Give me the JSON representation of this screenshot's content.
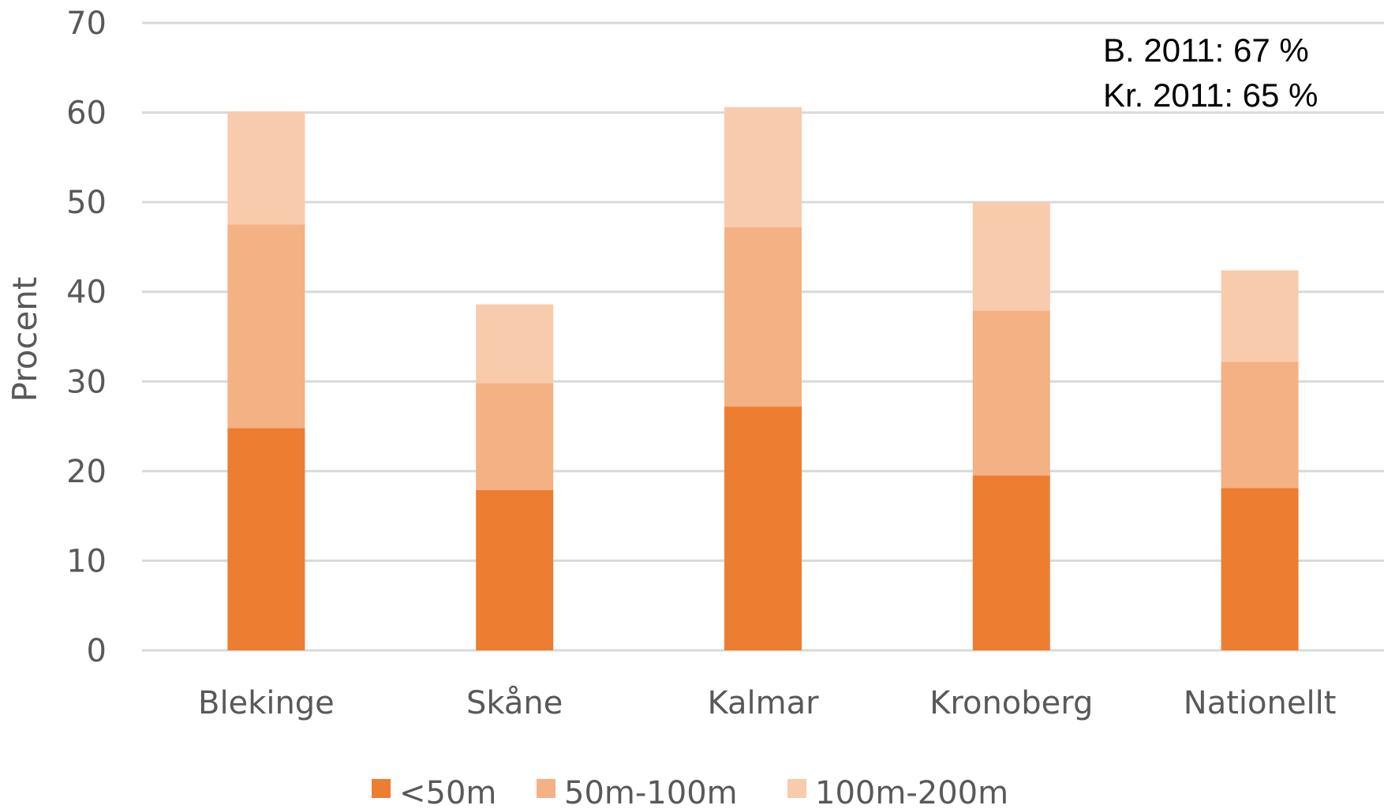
{
  "chart_data": {
    "type": "bar",
    "stacked": true,
    "categories": [
      "Blekinge",
      "Skåne",
      "Kalmar",
      "Kronoberg",
      "Nationellt"
    ],
    "series": [
      {
        "name": "<50m",
        "color": "#ED7D31",
        "values": [
          24.8,
          17.9,
          27.2,
          19.5,
          18.1
        ]
      },
      {
        "name": "50m-100m",
        "color": "#F4B183",
        "values": [
          22.7,
          11.9,
          20.0,
          18.4,
          14.1
        ]
      },
      {
        "name": "100m-200m",
        "color": "#F8CBAD",
        "values": [
          12.6,
          8.8,
          13.4,
          12.1,
          10.2
        ]
      }
    ],
    "ylabel": "Procent",
    "ylim": [
      0,
      70
    ],
    "yticks": [
      0,
      10,
      20,
      30,
      40,
      50,
      60,
      70
    ],
    "grid": true,
    "legend_position": "bottom",
    "annotations": [
      "B. 2011: 67 %",
      "Kr. 2011: 65 %"
    ],
    "annotation_position": "top-right"
  }
}
